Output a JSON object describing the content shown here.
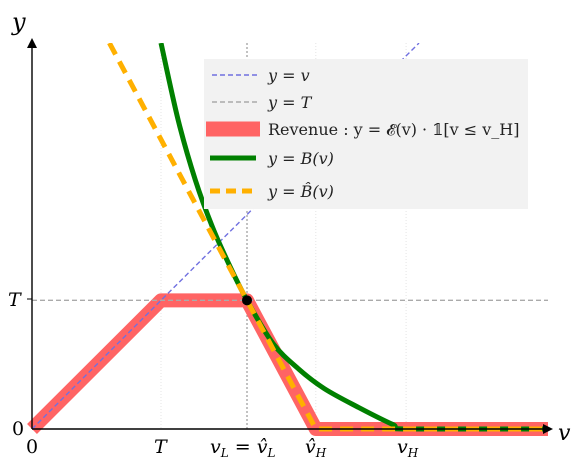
{
  "chart_data": {
    "type": "line",
    "xlabel": "v",
    "ylabel": "y",
    "xlim": [
      0,
      6
    ],
    "ylim": [
      0,
      4.5
    ],
    "grid": "vertical dotted at T, v_L, v_H-hat, v_H",
    "legend_position": "top-right",
    "x_ticks": [
      {
        "value": 0,
        "label": "0"
      },
      {
        "value": 1.5,
        "label": "T"
      },
      {
        "value": 2.5,
        "label": "v_L = v̂_L"
      },
      {
        "value": 3.3,
        "label": "v̂_H"
      },
      {
        "value": 4.35,
        "label": "v_H"
      }
    ],
    "y_ticks": [
      {
        "value": 0,
        "label": "0"
      },
      {
        "value": 1.5,
        "label": "T"
      }
    ],
    "series": [
      {
        "name": "y = v",
        "color": "#7070e0",
        "style": "dashed",
        "x": [
          0,
          4.5
        ],
        "y": [
          0,
          4.5
        ]
      },
      {
        "name": "y = T",
        "color": "#aaaaaa",
        "style": "dashed",
        "x": [
          0,
          6
        ],
        "y": [
          1.5,
          1.5
        ]
      },
      {
        "name": "Revenue : y = 𝓔(v) · 𝟙[v ≤ v_H]",
        "color": "#ff6464",
        "style": "thick",
        "x": [
          0,
          1.5,
          2.5,
          3.3,
          6
        ],
        "y": [
          0,
          1.5,
          1.5,
          0,
          0
        ]
      },
      {
        "name": "y = B(v)",
        "color": "#008000",
        "style": "solid",
        "x": [
          1.5,
          1.7,
          1.9,
          2.1,
          2.3,
          2.5,
          2.8,
          3.1,
          3.4,
          3.8,
          4.2,
          4.35,
          6
        ],
        "y": [
          4.5,
          3.6,
          2.9,
          2.35,
          1.9,
          1.5,
          1.0,
          0.7,
          0.47,
          0.25,
          0.05,
          0.0,
          0.0
        ]
      },
      {
        "name": "y = B̂(v)",
        "color": "#ffb000",
        "style": "dashed",
        "x": [
          0.9,
          2.5,
          3.3,
          6
        ],
        "y": [
          4.5,
          1.5,
          0,
          0
        ]
      }
    ],
    "marked_point": {
      "x": 2.5,
      "y": 1.5
    }
  },
  "legend": [
    {
      "text": "y = v"
    },
    {
      "text": "y = T"
    },
    {
      "text": "Revenue : y = 𝓔(v) · 𝟙[v ≤ v_H]"
    },
    {
      "text": "y = B(v)"
    },
    {
      "text": "y = B̂(v)"
    }
  ],
  "axis_labels": {
    "x": "v",
    "y": "y"
  },
  "tick_text": {
    "zero_x": "0",
    "T_x": "T",
    "vL_main": "v",
    "vL_sub": "L",
    "vL_eq": " = ",
    "vLhat_main": "v̂",
    "vLhat_sub": "L",
    "vHhat_main": "v̂",
    "vHhat_sub": "H",
    "vH_main": "v",
    "vH_sub": "H",
    "zero_y": "0",
    "T_y": "T"
  }
}
